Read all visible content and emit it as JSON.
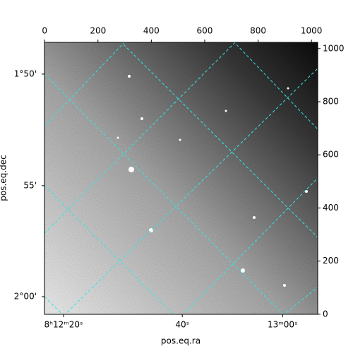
{
  "chart_data": {
    "type": "image",
    "xlabel": "pos.eq.ra",
    "ylabel": "pos.eq.dec",
    "xlim": [
      -0.5,
      1023.5
    ],
    "ylim": [
      -0.5,
      1023.5
    ],
    "xticks": [
      0,
      200,
      400,
      600,
      800,
      1000
    ],
    "yticks": [
      0,
      200,
      400,
      600,
      800,
      1000
    ],
    "x_world_ticks": [
      {
        "value": 71,
        "label": "8ʰ12ᵐ20ˢ"
      },
      {
        "value": 516,
        "label": "40ˢ"
      },
      {
        "value": 892,
        "label": "13ᵐ00ˢ"
      }
    ],
    "y_world_ticks": [
      {
        "value": 904,
        "label": "1°50'"
      },
      {
        "value": 484,
        "label": "55'"
      },
      {
        "value": 66,
        "label": "2°00'"
      }
    ],
    "cmap": "gray",
    "grid_color": "#33e6e6"
  }
}
